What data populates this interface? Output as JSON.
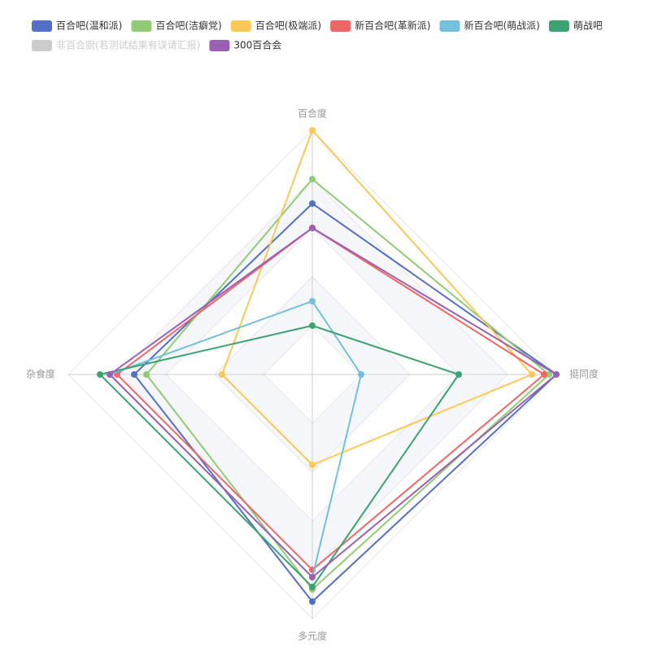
{
  "chart_data": {
    "type": "radar",
    "indicators": [
      {
        "name": "百合度",
        "max": 100
      },
      {
        "name": "挺同度",
        "max": 100
      },
      {
        "name": "多元度",
        "max": 100
      },
      {
        "name": "杂食度",
        "max": 100
      }
    ],
    "series": [
      {
        "name": "百合吧(温和派)",
        "values": [
          70,
          100,
          93,
          73
        ],
        "color": "#5470c6",
        "visible": true
      },
      {
        "name": "百合吧(洁癖党)",
        "values": [
          80,
          97,
          88,
          68
        ],
        "color": "#91cc75",
        "visible": true
      },
      {
        "name": "百合吧(极端派)",
        "values": [
          100,
          90,
          37,
          37
        ],
        "color": "#fac858",
        "visible": true
      },
      {
        "name": "新百合吧(革新派)",
        "values": [
          60,
          95,
          80,
          80
        ],
        "color": "#ee6666",
        "visible": true
      },
      {
        "name": "新百合吧(萌战派)",
        "values": [
          30,
          20,
          83,
          83
        ],
        "color": "#73c0de",
        "visible": true
      },
      {
        "name": "萌战吧",
        "values": [
          20,
          60,
          87,
          87
        ],
        "color": "#3ba272",
        "visible": true
      },
      {
        "name": "非百合厨(若测试结果有误请汇报)",
        "values": [
          0,
          0,
          0,
          0
        ],
        "color": "#cccccc",
        "visible": false
      },
      {
        "name": "300百合会",
        "values": [
          60,
          100,
          83,
          83
        ],
        "color": "#9a60b4",
        "visible": true
      }
    ],
    "legend_placement": "top-left",
    "split_number": 5,
    "shape": "polygon"
  }
}
